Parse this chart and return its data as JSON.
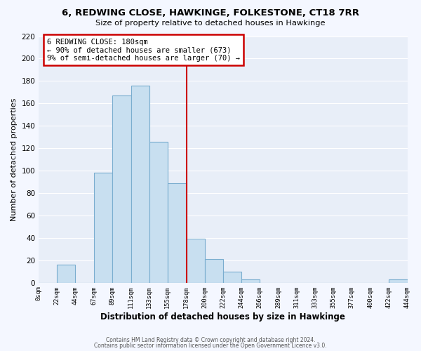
{
  "title": "6, REDWING CLOSE, HAWKINGE, FOLKESTONE, CT18 7RR",
  "subtitle": "Size of property relative to detached houses in Hawkinge",
  "xlabel": "Distribution of detached houses by size in Hawkinge",
  "ylabel": "Number of detached properties",
  "bin_edges": [
    0,
    22,
    44,
    67,
    89,
    111,
    133,
    155,
    178,
    200,
    222,
    244,
    266,
    289,
    311,
    333,
    355,
    377,
    400,
    422,
    444
  ],
  "bar_heights": [
    0,
    16,
    0,
    98,
    167,
    176,
    126,
    89,
    39,
    21,
    10,
    3,
    0,
    0,
    0,
    0,
    0,
    0,
    0,
    3
  ],
  "bar_color": "#c8dff0",
  "bar_edge_color": "#7aadcf",
  "vline_x": 178,
  "vline_color": "#cc0000",
  "annotation_text": "6 REDWING CLOSE: 180sqm\n← 90% of detached houses are smaller (673)\n9% of semi-detached houses are larger (70) →",
  "annotation_box_color": "#ffffff",
  "annotation_box_edge_color": "#cc0000",
  "ylim": [
    0,
    220
  ],
  "yticks": [
    0,
    20,
    40,
    60,
    80,
    100,
    120,
    140,
    160,
    180,
    200,
    220
  ],
  "tick_labels": [
    "0sqm",
    "22sqm",
    "44sqm",
    "67sqm",
    "89sqm",
    "111sqm",
    "133sqm",
    "155sqm",
    "178sqm",
    "200sqm",
    "222sqm",
    "244sqm",
    "266sqm",
    "289sqm",
    "311sqm",
    "333sqm",
    "355sqm",
    "377sqm",
    "400sqm",
    "422sqm",
    "444sqm"
  ],
  "footer1": "Contains HM Land Registry data © Crown copyright and database right 2024.",
  "footer2": "Contains public sector information licensed under the Open Government Licence v3.0.",
  "background_color": "#f4f7ff",
  "plot_bg_color": "#e8eef8",
  "grid_color": "#ffffff"
}
